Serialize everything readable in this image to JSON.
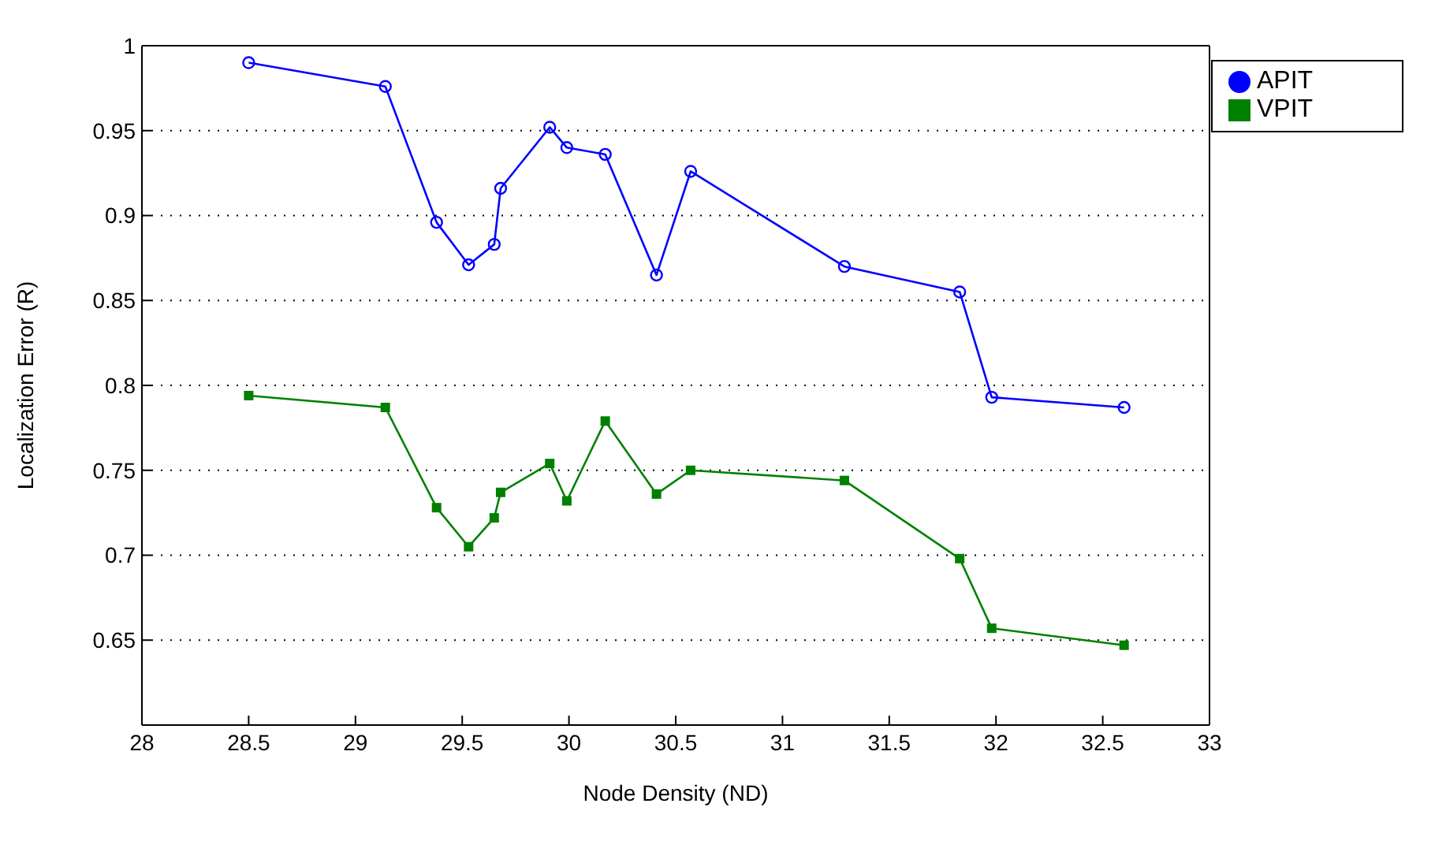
{
  "chart_data": {
    "type": "line",
    "xlabel": "Node Density (ND)",
    "ylabel": "Localization Error (R)",
    "x": [
      28.5,
      29.14,
      29.38,
      29.53,
      29.65,
      29.68,
      29.91,
      29.99,
      30.17,
      30.41,
      30.57,
      31.29,
      31.83,
      31.98,
      32.6
    ],
    "series": [
      {
        "name": "APIT",
        "color": "#0000ff",
        "marker": "circle",
        "values": [
          0.99,
          0.976,
          0.896,
          0.871,
          0.883,
          0.916,
          0.952,
          0.94,
          0.936,
          0.865,
          0.926,
          0.87,
          0.855,
          0.793,
          0.787
        ]
      },
      {
        "name": "VPIT",
        "color": "#008000",
        "marker": "square",
        "values": [
          0.794,
          0.787,
          0.728,
          0.705,
          0.722,
          0.737,
          0.754,
          0.732,
          0.779,
          0.736,
          0.75,
          0.744,
          0.698,
          0.657,
          0.647
        ]
      }
    ],
    "xlim": [
      28,
      33
    ],
    "xticks": [
      28,
      28.5,
      29,
      29.5,
      30,
      30.5,
      31,
      31.5,
      32,
      32.5,
      33
    ],
    "ylim": [
      0.6,
      1
    ],
    "yticks": [
      0.65,
      0.7,
      0.75,
      0.8,
      0.85,
      0.9,
      0.95,
      1
    ],
    "grid": "y",
    "legend": "top right",
    "line_style": "solid"
  }
}
